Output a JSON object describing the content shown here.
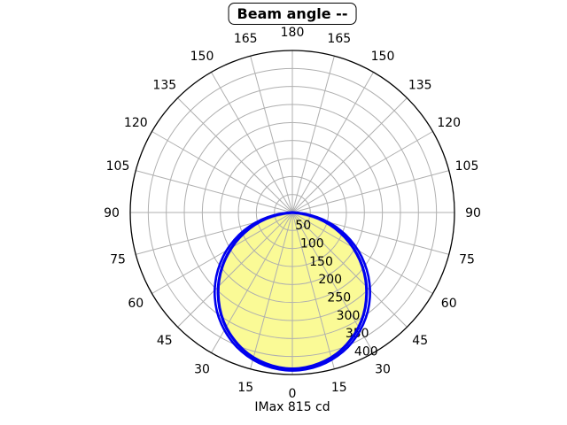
{
  "title_box": {
    "label": "Beam angle --"
  },
  "footer": {
    "label": "IMax 815 cd"
  },
  "colors": {
    "background": "#FFFFFF",
    "curve": "#0000EE",
    "beam_fill": "#FAFA96",
    "grid": "#AFAFAF",
    "outer_circle": "#000000",
    "text": "#000000"
  },
  "chart_data": {
    "type": "line",
    "subtype": "polar-photometric-intensity",
    "title": "Beam angle --",
    "annotation": "IMax 815 cd",
    "imax_cd": 815,
    "angle_tick_labels_deg": [
      0,
      15,
      30,
      45,
      60,
      75,
      90,
      105,
      120,
      135,
      150,
      165,
      180
    ],
    "angle_ticks_mirrored_both_sides": true,
    "radial_tick_labels": [
      50,
      100,
      150,
      200,
      250,
      300,
      350,
      400
    ],
    "radial_axis_max": 450,
    "grid": true,
    "legend": false,
    "series": [
      {
        "name": "curve-1",
        "mirrored_symmetric": true,
        "angles_deg": [
          0,
          5,
          10,
          15,
          20,
          25,
          30,
          35,
          40,
          45,
          50,
          55,
          60,
          65,
          70,
          75,
          80,
          85,
          90
        ],
        "intensity": [
          435,
          433,
          427,
          418,
          405,
          388,
          369,
          346,
          320,
          292,
          262,
          230,
          196,
          162,
          127,
          92,
          58,
          26,
          0
        ]
      },
      {
        "name": "curve-2",
        "mirrored_symmetric": true,
        "angles_deg": [
          0,
          5,
          10,
          15,
          20,
          25,
          30,
          35,
          40,
          45,
          50,
          55,
          60,
          65,
          70,
          75,
          80,
          85,
          90
        ],
        "intensity": [
          440,
          438,
          433,
          424,
          412,
          397,
          378,
          357,
          333,
          306,
          277,
          245,
          213,
          178,
          143,
          106,
          70,
          34,
          0
        ]
      }
    ]
  }
}
